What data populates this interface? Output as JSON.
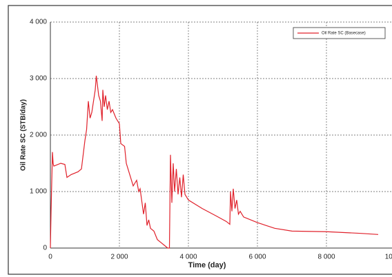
{
  "chart_data": {
    "type": "line",
    "x_label": "Time (day)",
    "y_label": "Oil Rate SC (STB/day)",
    "x": [
      0,
      20,
      60,
      80,
      100,
      300,
      420,
      480,
      600,
      800,
      900,
      1000,
      1050,
      1100,
      1150,
      1200,
      1250,
      1300,
      1330,
      1360,
      1400,
      1450,
      1500,
      1520,
      1560,
      1600,
      1650,
      1700,
      1750,
      1800,
      1900,
      2000,
      2040,
      2150,
      2200,
      2300,
      2400,
      2500,
      2560,
      2600,
      2700,
      2750,
      2800,
      2850,
      2900,
      3000,
      3100,
      3200,
      3300,
      3400,
      3450,
      3480,
      3520,
      3560,
      3600,
      3650,
      3700,
      3750,
      3800,
      3850,
      3900,
      4000,
      4400,
      4800,
      5100,
      5200,
      5220,
      5260,
      5300,
      5350,
      5400,
      5450,
      5500,
      5600,
      6000,
      6500,
      7000,
      8000,
      9000,
      9500
    ],
    "series": [
      {
        "name": "Oil Rate SC (Basecase)",
        "color": "#e0202a",
        "values": [
          0,
          650,
          1700,
          1500,
          1450,
          1500,
          1480,
          1250,
          1300,
          1350,
          1400,
          1900,
          2100,
          2600,
          2300,
          2400,
          2600,
          2800,
          3050,
          2900,
          2700,
          2600,
          2250,
          2800,
          2500,
          2700,
          2450,
          2600,
          2400,
          2450,
          2300,
          2200,
          1850,
          1800,
          1500,
          1300,
          1100,
          1200,
          1000,
          1050,
          600,
          800,
          400,
          500,
          350,
          300,
          150,
          100,
          50,
          0,
          0,
          1650,
          800,
          1500,
          1000,
          1400,
          950,
          1250,
          900,
          1300,
          950,
          850,
          700,
          570,
          470,
          420,
          1000,
          650,
          1050,
          700,
          850,
          600,
          650,
          550,
          450,
          350,
          300,
          290,
          260,
          240
        ]
      }
    ],
    "xlim": [
      0,
      10000
    ],
    "xticks": [
      0,
      {
        "value": 2000,
        "label": "2 000"
      },
      {
        "value": 4000,
        "label": "4 000"
      },
      {
        "value": 6000,
        "label": "6 000"
      },
      {
        "value": 8000,
        "label": "8 000"
      },
      {
        "value": 10000,
        "label": "10 000"
      }
    ],
    "ylim": [
      0,
      4000
    ],
    "yticks": [
      0,
      {
        "value": 1000,
        "label": "1 000"
      },
      {
        "value": 2000,
        "label": "2 000"
      },
      {
        "value": 3000,
        "label": "3 000"
      },
      {
        "value": 4000,
        "label": "4 000"
      }
    ],
    "grid": true,
    "legend": "top-right"
  }
}
